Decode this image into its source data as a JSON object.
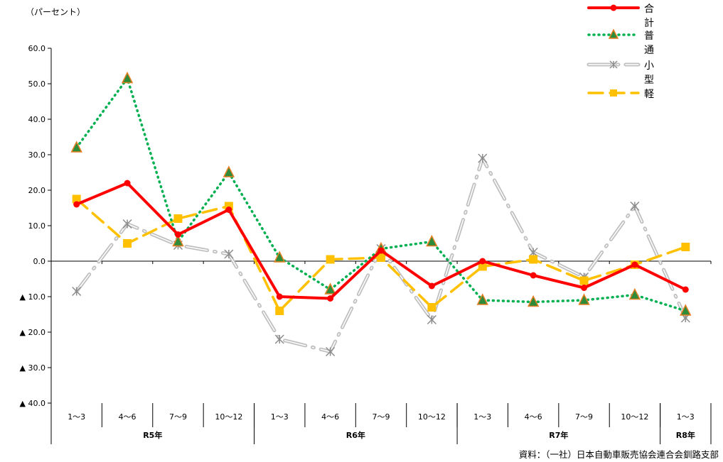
{
  "page": {
    "unit_label": "（パーセント）",
    "source": "資料：（一社）日本自動車販売協会連合会釧路支部"
  },
  "chart_data": {
    "type": "line",
    "ylabel": "（パーセント）",
    "ylim": [
      -40,
      60
    ],
    "yticks": [
      60,
      50,
      40,
      30,
      20,
      10,
      0,
      -10,
      -20,
      -30,
      -40
    ],
    "ytick_labels": [
      "60.0",
      "50.0",
      "40.0",
      "30.0",
      "20.0",
      "10.0",
      "0.0",
      "▲ 10.0",
      "▲ 20.0",
      "▲ 30.0",
      "▲ 40.0"
    ],
    "grid": false,
    "legend_position": "top-right",
    "categories": [
      "1～3",
      "4～6",
      "7～9",
      "10～12",
      "1～3",
      "4～6",
      "7～9",
      "10～12",
      "1～3",
      "4～6",
      "7～9",
      "10～12",
      "1～3"
    ],
    "groups": [
      {
        "label": "R5年",
        "count": 4
      },
      {
        "label": "R6年",
        "count": 4
      },
      {
        "label": "R7年",
        "count": 4
      },
      {
        "label": "R8年",
        "count": 1
      }
    ],
    "series": [
      {
        "name": "合計",
        "color": "#ff0000",
        "style": "solid",
        "marker": "circle",
        "values": [
          16.0,
          22.0,
          7.5,
          14.5,
          -10.0,
          -10.5,
          3.0,
          -7.0,
          0.0,
          -4.0,
          -7.5,
          -1.0,
          -8.0
        ]
      },
      {
        "name": "普通",
        "color": "#00b050",
        "style": "dotted",
        "marker": "triangle",
        "values": [
          32.0,
          51.5,
          5.5,
          25.0,
          1.0,
          -8.0,
          3.5,
          5.5,
          -11.0,
          -11.5,
          -11.0,
          -9.5,
          -14.0
        ]
      },
      {
        "name": "小型",
        "color": "#a6a6a6",
        "style": "dashdot",
        "marker": "star",
        "values": [
          -8.5,
          10.5,
          4.5,
          2.0,
          -22.0,
          -25.5,
          3.5,
          -16.5,
          29.0,
          2.5,
          -4.5,
          15.5,
          -16.0
        ]
      },
      {
        "name": "軽",
        "color": "#ffc000",
        "style": "dashed",
        "marker": "square",
        "values": [
          17.5,
          5.0,
          12.0,
          15.5,
          -14.0,
          0.5,
          1.0,
          -13.0,
          -1.5,
          0.5,
          -5.5,
          -1.0,
          4.0
        ]
      }
    ]
  }
}
